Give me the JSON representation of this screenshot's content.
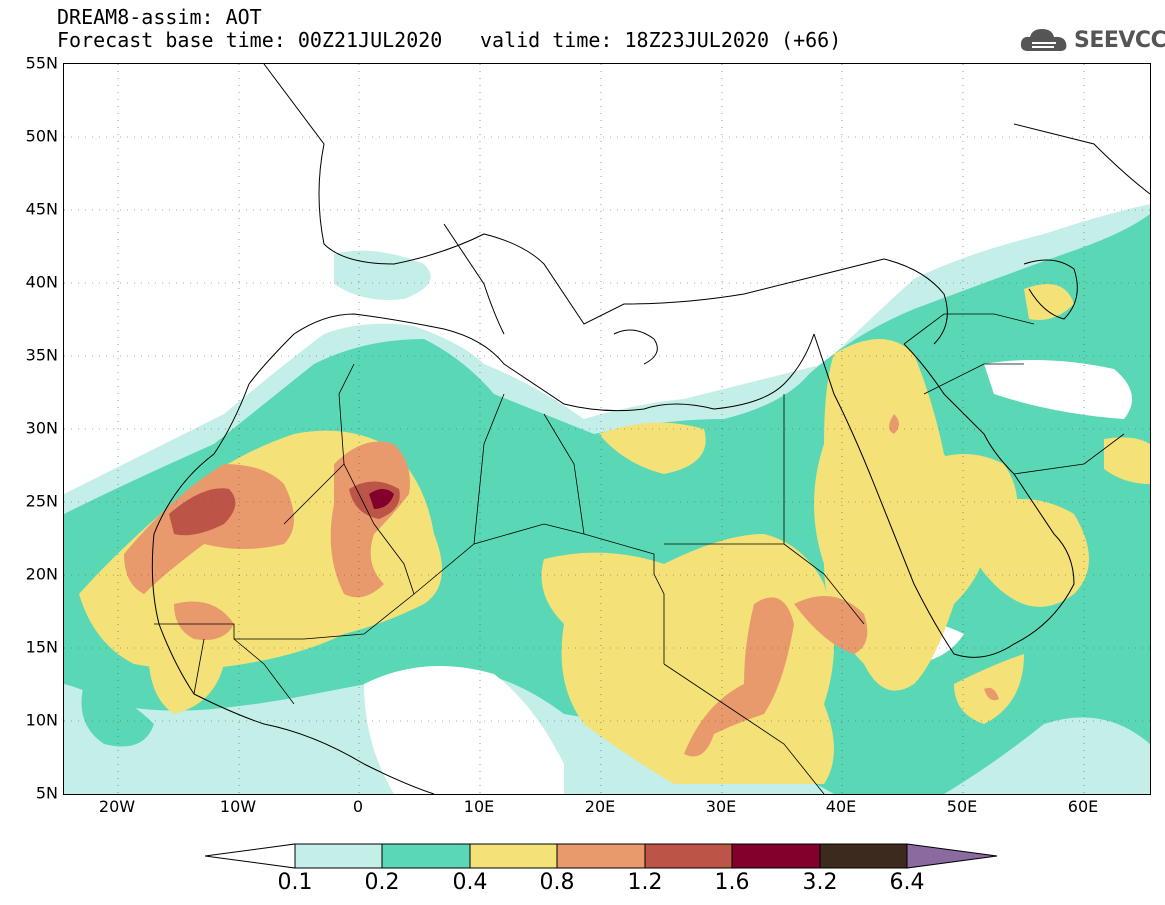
{
  "header": {
    "title": "DREAM8-assim: AOT",
    "base_time": "Forecast base time: 00Z21JUL2020",
    "valid_time": "valid time: 18Z23JUL2020 (+66)"
  },
  "logo": {
    "text": "SEEVCCC",
    "icon": "cloud-icon"
  },
  "map": {
    "variable": "Aerosol optical thickness",
    "lon_range": [
      -25,
      65
    ],
    "lat_range": [
      5,
      55
    ],
    "lat_labels": [
      "55N",
      "50N",
      "45N",
      "40N",
      "35N",
      "30N",
      "25N",
      "20N",
      "15N",
      "10N",
      "5N"
    ],
    "lon_labels": [
      "20W",
      "10W",
      "0",
      "10E",
      "20E",
      "30E",
      "40E",
      "50E",
      "60E"
    ],
    "gridlines": "dotted"
  },
  "colorbar": {
    "labels": [
      "0.1",
      "0.2",
      "0.4",
      "0.8",
      "1.2",
      "1.6",
      "3.2",
      "6.4"
    ],
    "colors": [
      "#c4eee8",
      "#5ad8b5",
      "#f4e177",
      "#e99a6d",
      "#bc5548",
      "#84002c",
      "#3c2a1e",
      "#8a6a9f"
    ],
    "open_ends": [
      "white-left",
      "purple-right"
    ]
  }
}
